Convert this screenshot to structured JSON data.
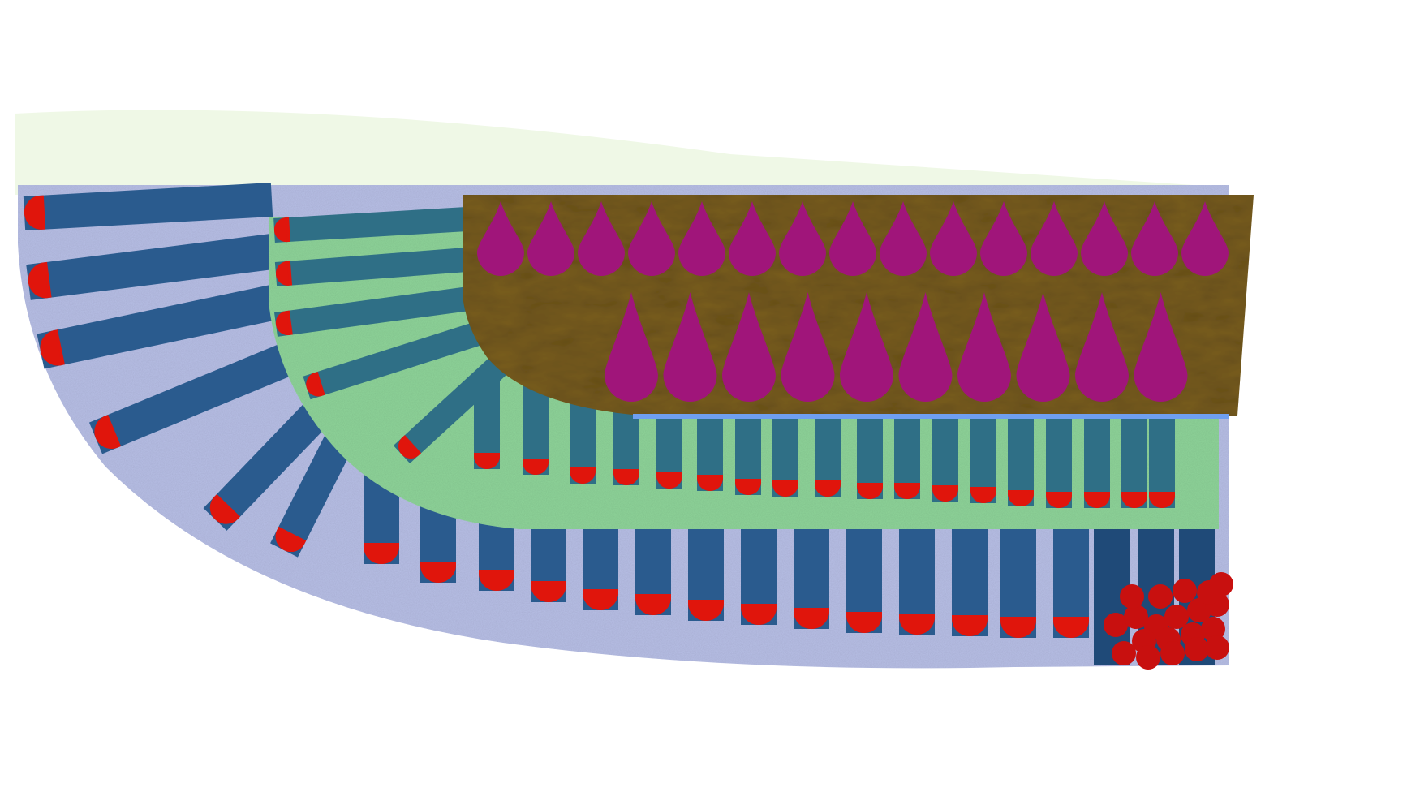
{
  "artwork": {
    "description_visible_text": "",
    "colors": {
      "background": "#ffffff",
      "outer_paper": "#b8bfe6",
      "outer_paper_speckle": "#3a5fb0",
      "blue_bar": "#2a5b8e",
      "blue_bar_dark": "#1f4a78",
      "green_panel": "#8fd49a",
      "teal_bar": "#2f6f86",
      "brown_panel": "#7a5e22",
      "magenta_drop": "#a0157a",
      "red_tip": "#e0150c",
      "red_cluster": "#c8100f",
      "divider_blue": "#6f9ff0",
      "paper_green_tint": "#dff2cf"
    },
    "layers": [
      {
        "name": "outer-fan",
        "element": "blue-bars",
        "tip": "red-tip"
      },
      {
        "name": "middle-fan",
        "element": "teal-bars",
        "tip": "red-tip"
      },
      {
        "name": "inner-panel",
        "element": "magenta-drops"
      }
    ],
    "drop_rows": [
      {
        "row": "top",
        "count": 15
      },
      {
        "row": "bottom",
        "count": 10
      }
    ]
  }
}
